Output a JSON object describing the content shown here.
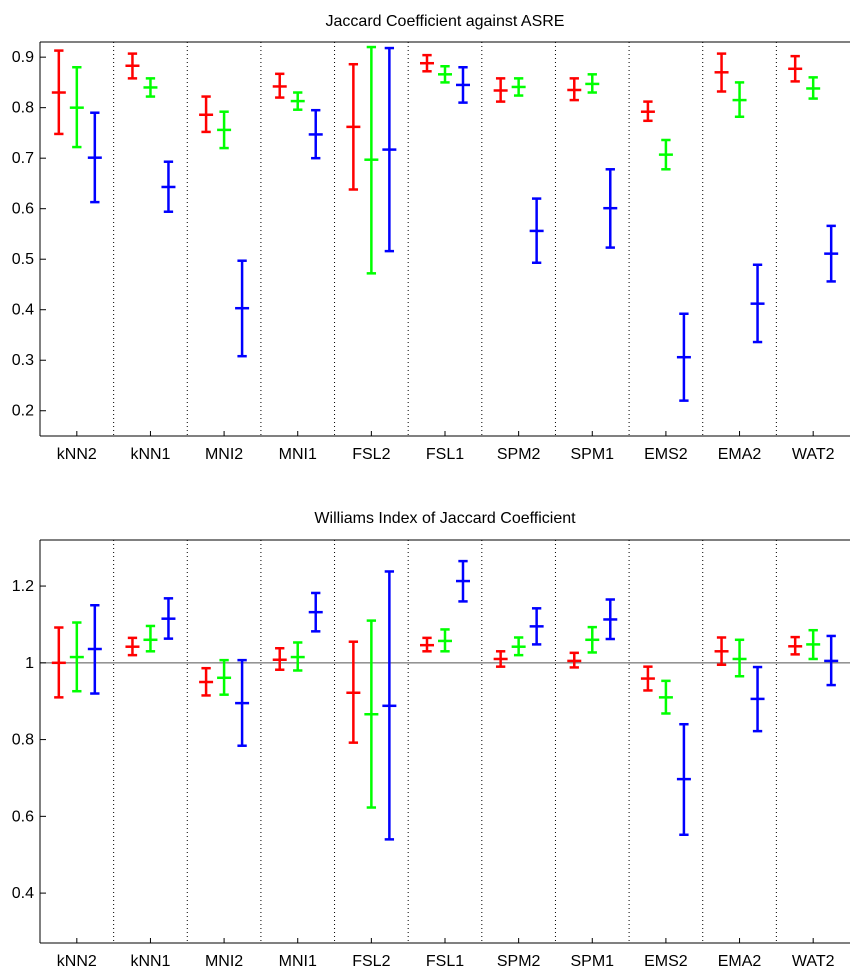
{
  "chart_data": [
    {
      "type": "errorbar",
      "title": "Jaccard Coefficient against ASRE",
      "xlabel": "",
      "ylabel": "",
      "categories": [
        "kNN2",
        "kNN1",
        "MNI2",
        "MNI1",
        "FSL2",
        "FSL1",
        "SPM2",
        "SPM1",
        "EMS2",
        "EMA2",
        "WAT2"
      ],
      "ylim": [
        0.15,
        0.93
      ],
      "yticks": [
        0.2,
        0.3,
        0.4,
        0.5,
        0.6,
        0.7,
        0.8,
        0.9
      ],
      "ytick_labels": [
        "0.2",
        "0.3",
        "0.4",
        "0.5",
        "0.6",
        "0.7",
        "0.8",
        "0.9"
      ],
      "grid": "vertical dotted separators",
      "reference_line": null,
      "series": [
        {
          "color": "#ff0000",
          "mean": [
            0.83,
            0.883,
            0.786,
            0.842,
            0.762,
            0.888,
            0.834,
            0.835,
            0.792,
            0.87,
            0.877
          ],
          "lower": [
            0.748,
            0.858,
            0.752,
            0.82,
            0.638,
            0.872,
            0.812,
            0.815,
            0.774,
            0.832,
            0.852
          ],
          "upper": [
            0.913,
            0.907,
            0.822,
            0.867,
            0.886,
            0.904,
            0.858,
            0.858,
            0.812,
            0.907,
            0.902
          ]
        },
        {
          "color": "#00ff00",
          "mean": [
            0.8,
            0.84,
            0.756,
            0.813,
            0.697,
            0.866,
            0.841,
            0.847,
            0.707,
            0.815,
            0.838
          ],
          "lower": [
            0.722,
            0.822,
            0.72,
            0.796,
            0.472,
            0.85,
            0.824,
            0.83,
            0.678,
            0.782,
            0.818
          ],
          "upper": [
            0.88,
            0.858,
            0.792,
            0.83,
            0.92,
            0.882,
            0.858,
            0.866,
            0.736,
            0.85,
            0.86
          ]
        },
        {
          "color": "#0000ff",
          "mean": [
            0.701,
            0.643,
            0.403,
            0.747,
            0.717,
            0.845,
            0.556,
            0.601,
            0.306,
            0.412,
            0.511
          ],
          "lower": [
            0.613,
            0.594,
            0.308,
            0.7,
            0.516,
            0.81,
            0.493,
            0.523,
            0.22,
            0.336,
            0.456
          ],
          "upper": [
            0.79,
            0.693,
            0.497,
            0.795,
            0.918,
            0.88,
            0.62,
            0.678,
            0.392,
            0.489,
            0.566
          ]
        }
      ]
    },
    {
      "type": "errorbar",
      "title": "Williams Index of Jaccard Coefficient",
      "xlabel": "",
      "ylabel": "",
      "categories": [
        "kNN2",
        "kNN1",
        "MNI2",
        "MNI1",
        "FSL2",
        "FSL1",
        "SPM2",
        "SPM1",
        "EMS2",
        "EMA2",
        "WAT2"
      ],
      "ylim": [
        0.27,
        1.32
      ],
      "yticks": [
        0.4,
        0.6,
        0.8,
        1.0,
        1.2
      ],
      "ytick_labels": [
        "0.4",
        "0.6",
        "0.8",
        "1",
        "1.2"
      ],
      "grid": "vertical dotted separators",
      "reference_line": 1,
      "series": [
        {
          "color": "#ff0000",
          "mean": [
            1.0,
            1.042,
            0.95,
            1.008,
            0.922,
            1.046,
            1.01,
            1.005,
            0.959,
            1.03,
            1.043
          ],
          "lower": [
            0.91,
            1.02,
            0.915,
            0.982,
            0.792,
            1.03,
            0.99,
            0.988,
            0.928,
            0.995,
            1.022
          ],
          "upper": [
            1.092,
            1.065,
            0.986,
            1.038,
            1.055,
            1.065,
            1.03,
            1.026,
            0.99,
            1.066,
            1.067
          ]
        },
        {
          "color": "#00ff00",
          "mean": [
            1.015,
            1.06,
            0.961,
            1.015,
            0.866,
            1.057,
            1.042,
            1.06,
            0.91,
            1.01,
            1.048
          ],
          "lower": [
            0.926,
            1.03,
            0.917,
            0.98,
            0.623,
            1.03,
            1.02,
            1.027,
            0.868,
            0.965,
            1.01
          ],
          "upper": [
            1.105,
            1.096,
            1.007,
            1.053,
            1.11,
            1.087,
            1.066,
            1.093,
            0.953,
            1.06,
            1.085
          ]
        },
        {
          "color": "#0000ff",
          "mean": [
            1.036,
            1.115,
            0.895,
            1.132,
            0.888,
            1.213,
            1.095,
            1.113,
            0.697,
            0.906,
            1.005
          ],
          "lower": [
            0.92,
            1.063,
            0.784,
            1.082,
            0.54,
            1.16,
            1.048,
            1.062,
            0.552,
            0.822,
            0.942
          ],
          "upper": [
            1.15,
            1.168,
            1.007,
            1.182,
            1.238,
            1.265,
            1.142,
            1.165,
            0.84,
            0.989,
            1.07
          ]
        }
      ]
    }
  ]
}
